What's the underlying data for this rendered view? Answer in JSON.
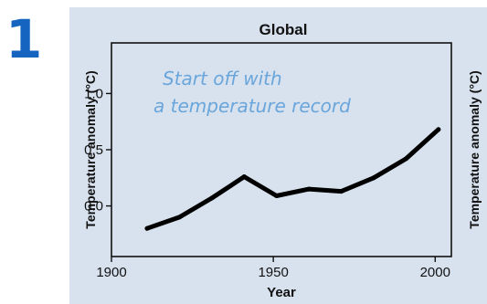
{
  "step_number": "1",
  "colors": {
    "panel_background": "#d8e2ee",
    "step_number": "#1565c0",
    "annotation": "#6aa6db",
    "line": "#000000"
  },
  "annotation": {
    "line1": "Start off with",
    "line2": "a temperature record"
  },
  "chart_data": {
    "type": "line",
    "title": "Global",
    "xlabel": "Year",
    "ylabel": "Temperature anomaly (°C)",
    "ylabel_right": "Temperature anomaly (°C)",
    "xlim": [
      1900,
      2005
    ],
    "ylim": [
      -0.45,
      1.45
    ],
    "x_ticks": [
      1900,
      1950,
      2000
    ],
    "x_tick_labels": [
      "1900",
      "1950",
      "2000"
    ],
    "y_ticks": [
      0.0,
      0.5,
      1.0
    ],
    "y_tick_labels": [
      "0.0",
      "0.5",
      "1.0"
    ],
    "grid": false,
    "x": [
      1911,
      1921,
      1931,
      1941,
      1951,
      1961,
      1971,
      1981,
      1991,
      2001
    ],
    "series": [
      {
        "values": [
          -0.2,
          -0.1,
          0.07,
          0.26,
          0.09,
          0.15,
          0.13,
          0.25,
          0.42,
          0.68
        ]
      }
    ]
  }
}
